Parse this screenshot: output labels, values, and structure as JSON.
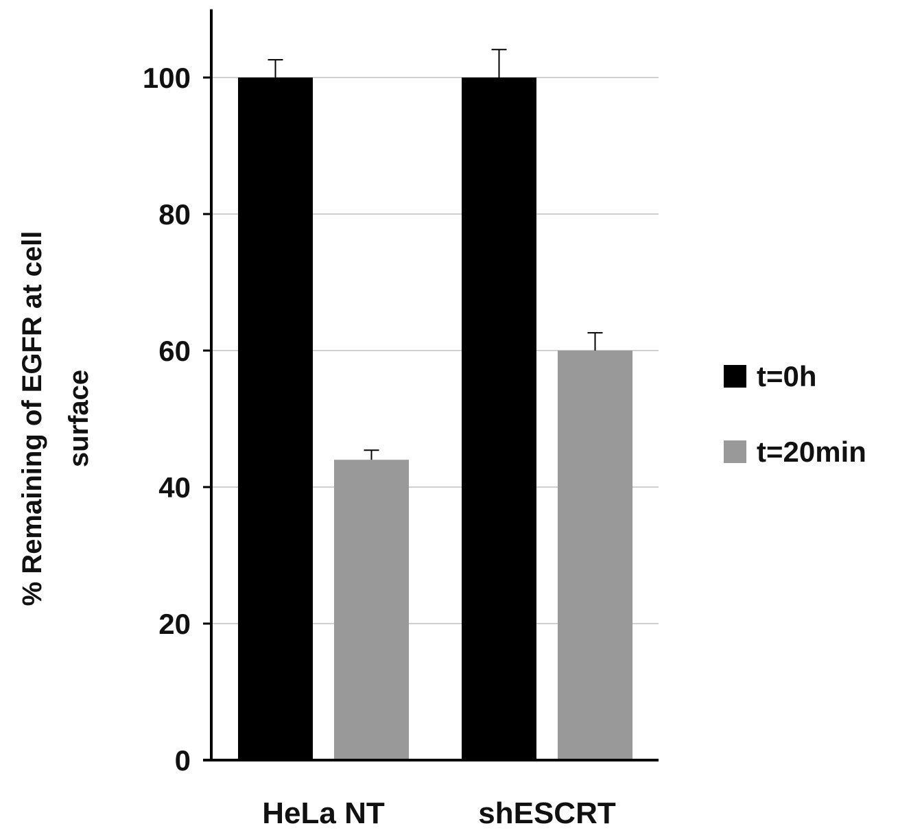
{
  "chart_data": {
    "type": "bar",
    "title": "",
    "xlabel": "",
    "ylabel": "% Remaining of EGFR at cell surface",
    "ylabel_lines": [
      "% Remaining of EGFR at cell",
      "surface"
    ],
    "categories": [
      "HeLa NT",
      "shESCRT"
    ],
    "series": [
      {
        "name": "t=0h",
        "color": "#000000",
        "values": [
          100,
          100
        ],
        "error_upper": [
          102.6,
          104.1
        ]
      },
      {
        "name": "t=20min",
        "color": "#999999",
        "values": [
          44,
          60
        ],
        "error_upper": [
          45.4,
          62.6
        ]
      }
    ],
    "ylim": [
      0,
      110
    ],
    "yticks": [
      0,
      20,
      40,
      60,
      80,
      100
    ],
    "grid": true,
    "legend_position": "right"
  }
}
